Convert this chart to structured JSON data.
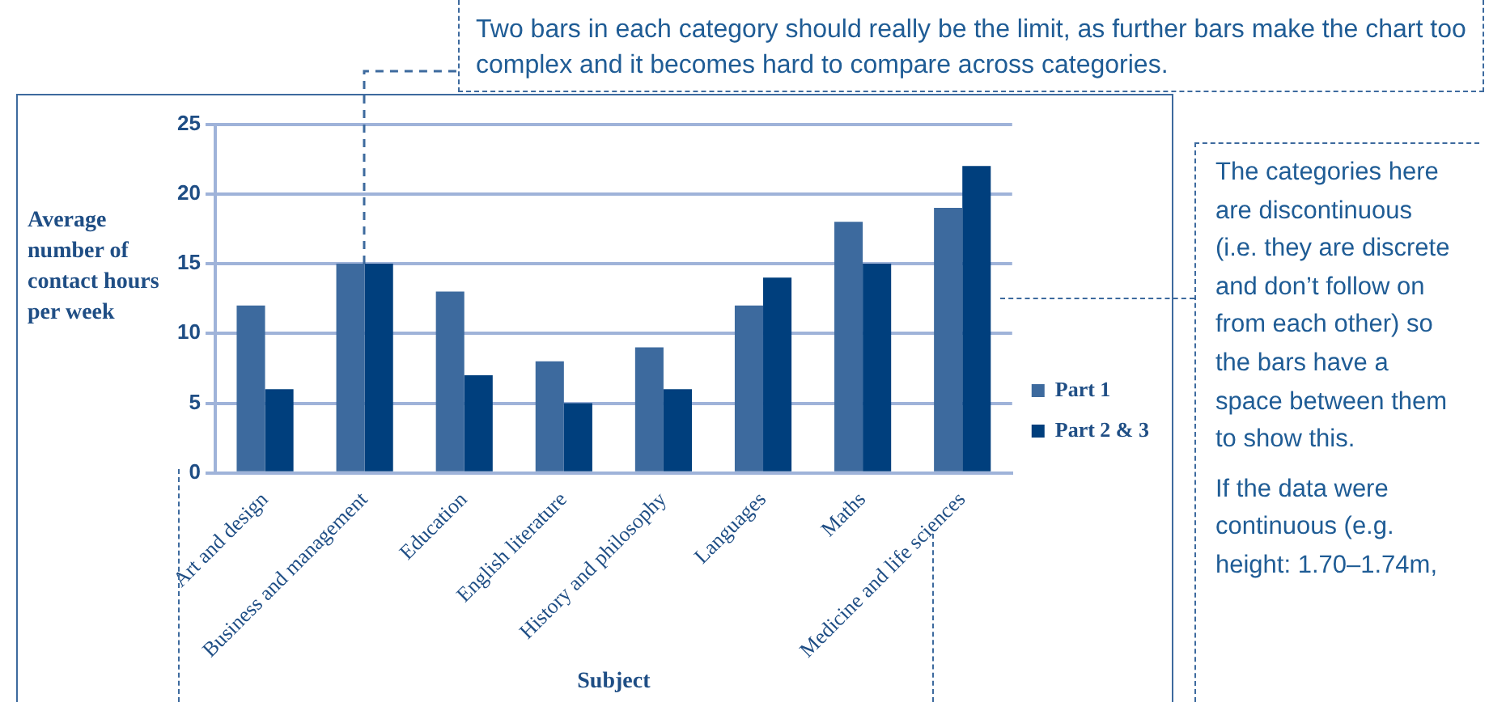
{
  "chart_data": {
    "type": "bar",
    "xlabel": "Subject",
    "ylabel": "Average number of contact hours per week",
    "categories": [
      "Art and design",
      "Business and management",
      "Education",
      "English literature",
      "History and philosophy",
      "Languages",
      "Maths",
      "Medicine and life sciences"
    ],
    "series": [
      {
        "name": "Part 1",
        "color": "#3d6a9e",
        "values": [
          12,
          15,
          13,
          8,
          9,
          12,
          18,
          19
        ]
      },
      {
        "name": "Part 2 & 3",
        "color": "#003f7d",
        "values": [
          6,
          15,
          7,
          5,
          6,
          14,
          15,
          22
        ]
      }
    ],
    "ylim": [
      0,
      25
    ],
    "yticks": [
      0,
      5,
      10,
      15,
      20,
      25
    ],
    "grid": "y",
    "legend": "right",
    "annotations": [
      {
        "text": "Two bars in each category should really be the limit, as further bars make the chart too complex and it becomes hard to compare across categories.",
        "x": "Business and management",
        "y": 15
      },
      "The categories here are discontinuous (i.e. they are discrete and don’t follow on from each other) so the bars have a space between them to show this.",
      "If the data were continuous (e.g. height: 1.70–1.74m,"
    ]
  }
}
